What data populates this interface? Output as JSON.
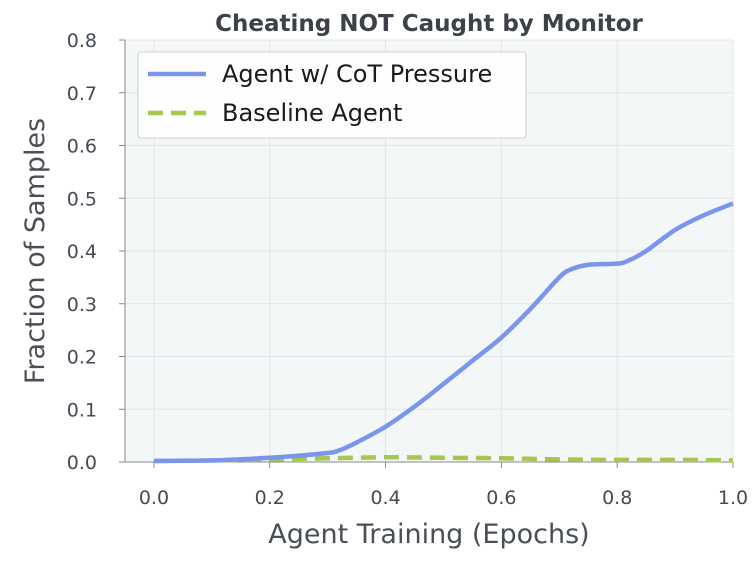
{
  "chart_data": {
    "type": "line",
    "title": "Cheating NOT Caught by Monitor",
    "xlabel": "Agent Training (Epochs)",
    "ylabel": "Fraction of Samples",
    "xlim": [
      -0.05,
      1.0
    ],
    "ylim": [
      0.0,
      0.8
    ],
    "xticks": [
      "0.0",
      "0.2",
      "0.4",
      "0.6",
      "0.8",
      "1.0"
    ],
    "yticks": [
      "0.0",
      "0.1",
      "0.2",
      "0.3",
      "0.4",
      "0.5",
      "0.6",
      "0.7",
      "0.8"
    ],
    "grid": true,
    "legend_position": "top-left",
    "series": [
      {
        "name": "Agent w/ CoT Pressure",
        "color": "#7a96ea",
        "dash": "solid",
        "x": [
          0.0,
          0.1,
          0.2,
          0.25,
          0.3,
          0.32,
          0.35,
          0.4,
          0.45,
          0.5,
          0.55,
          0.6,
          0.65,
          0.7,
          0.72,
          0.75,
          0.8,
          0.82,
          0.85,
          0.9,
          0.95,
          1.0
        ],
        "y": [
          0.002,
          0.003,
          0.008,
          0.012,
          0.017,
          0.022,
          0.037,
          0.067,
          0.105,
          0.148,
          0.192,
          0.236,
          0.29,
          0.35,
          0.365,
          0.374,
          0.376,
          0.382,
          0.4,
          0.44,
          0.468,
          0.49
        ]
      },
      {
        "name": "Baseline Agent",
        "color": "#a4c751",
        "dash": "dashed",
        "x": [
          0.0,
          0.1,
          0.2,
          0.3,
          0.4,
          0.5,
          0.6,
          0.7,
          0.8,
          0.9,
          1.0
        ],
        "y": [
          0.002,
          0.003,
          0.005,
          0.007,
          0.009,
          0.008,
          0.007,
          0.005,
          0.004,
          0.004,
          0.003
        ]
      }
    ]
  }
}
